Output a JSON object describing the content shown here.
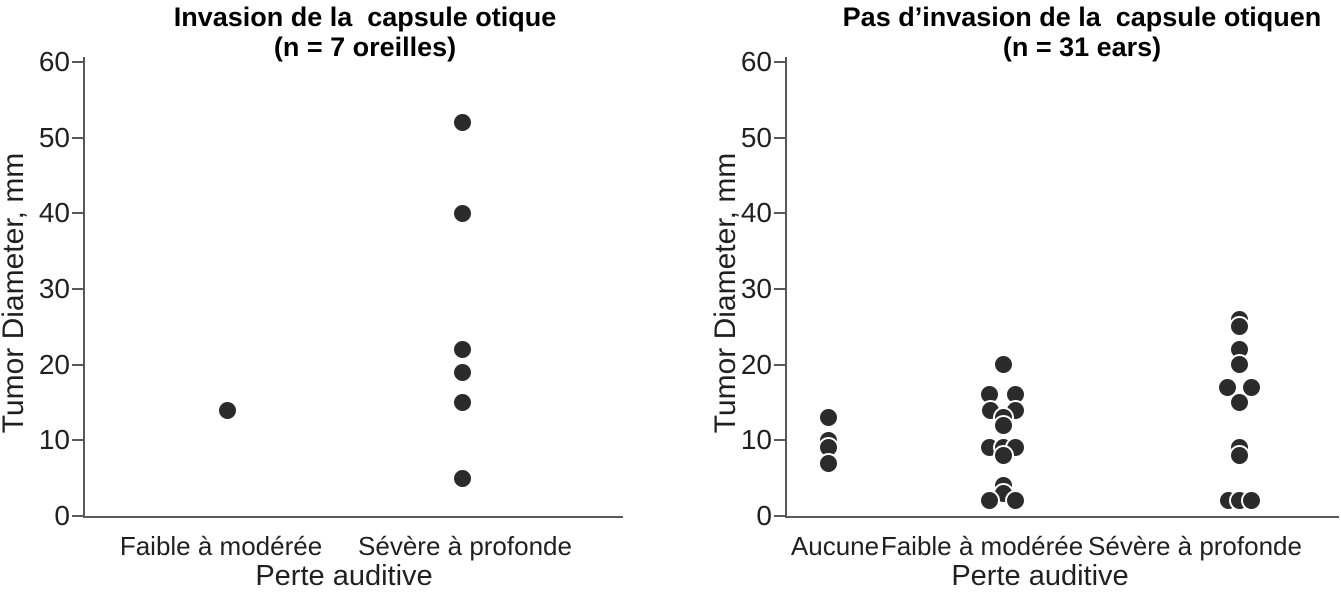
{
  "figure": {
    "background": "#ffffff",
    "dot_color": "#2b2b2b",
    "axis_color": "#58595b",
    "text_color": "#231f20"
  },
  "chart_data": [
    {
      "type": "scatter",
      "title": "Invasion de la  capsule otique",
      "subtitle": "(n = 7 oreilles)",
      "xlabel": "Perte auditive",
      "ylabel": "Tumor Diameter, mm",
      "ylim": [
        0,
        60
      ],
      "yticks": [
        0,
        10,
        20,
        30,
        40,
        50,
        60
      ],
      "grid": false,
      "legend": false,
      "categories": [
        "Faible à modérée",
        "Sévère à profonde"
      ],
      "series": [
        {
          "category": "Faible à modérée",
          "values": [
            14
          ],
          "offsets": [
            0
          ]
        },
        {
          "category": "Sévère à profonde",
          "values": [
            52,
            40,
            22,
            19,
            15,
            5
          ],
          "offsets": [
            0,
            0,
            0,
            0,
            0,
            0
          ]
        }
      ]
    },
    {
      "type": "scatter",
      "title": "Pas d’invasion de la  capsule otiquen",
      "subtitle": "(n = 31 ears)",
      "xlabel": "Perte auditive",
      "ylabel": "Tumor Diameter, mm",
      "ylim": [
        0,
        60
      ],
      "yticks": [
        0,
        10,
        20,
        30,
        40,
        50,
        60
      ],
      "grid": false,
      "legend": false,
      "categories": [
        "Aucune",
        "Faible à modérée",
        "Sévère à profonde"
      ],
      "series": [
        {
          "category": "Aucune",
          "values": [
            13,
            10,
            9,
            7
          ],
          "offsets": [
            0,
            0,
            0,
            0
          ]
        },
        {
          "category": "Faible à modérée",
          "values": [
            20,
            16,
            16,
            14,
            14,
            13,
            12,
            9,
            9,
            9,
            8,
            4,
            3,
            2,
            2
          ],
          "offsets": [
            0,
            -14,
            12,
            -13,
            12,
            0,
            0,
            -14,
            0,
            12,
            0,
            0,
            0,
            -14,
            12
          ]
        },
        {
          "category": "Sévère à profonde",
          "values": [
            26,
            25,
            22,
            20,
            17,
            17,
            15,
            9,
            8,
            2,
            2,
            2
          ],
          "offsets": [
            0,
            0,
            0,
            0,
            -12,
            12,
            0,
            0,
            0,
            -11,
            0,
            12
          ]
        }
      ]
    }
  ]
}
